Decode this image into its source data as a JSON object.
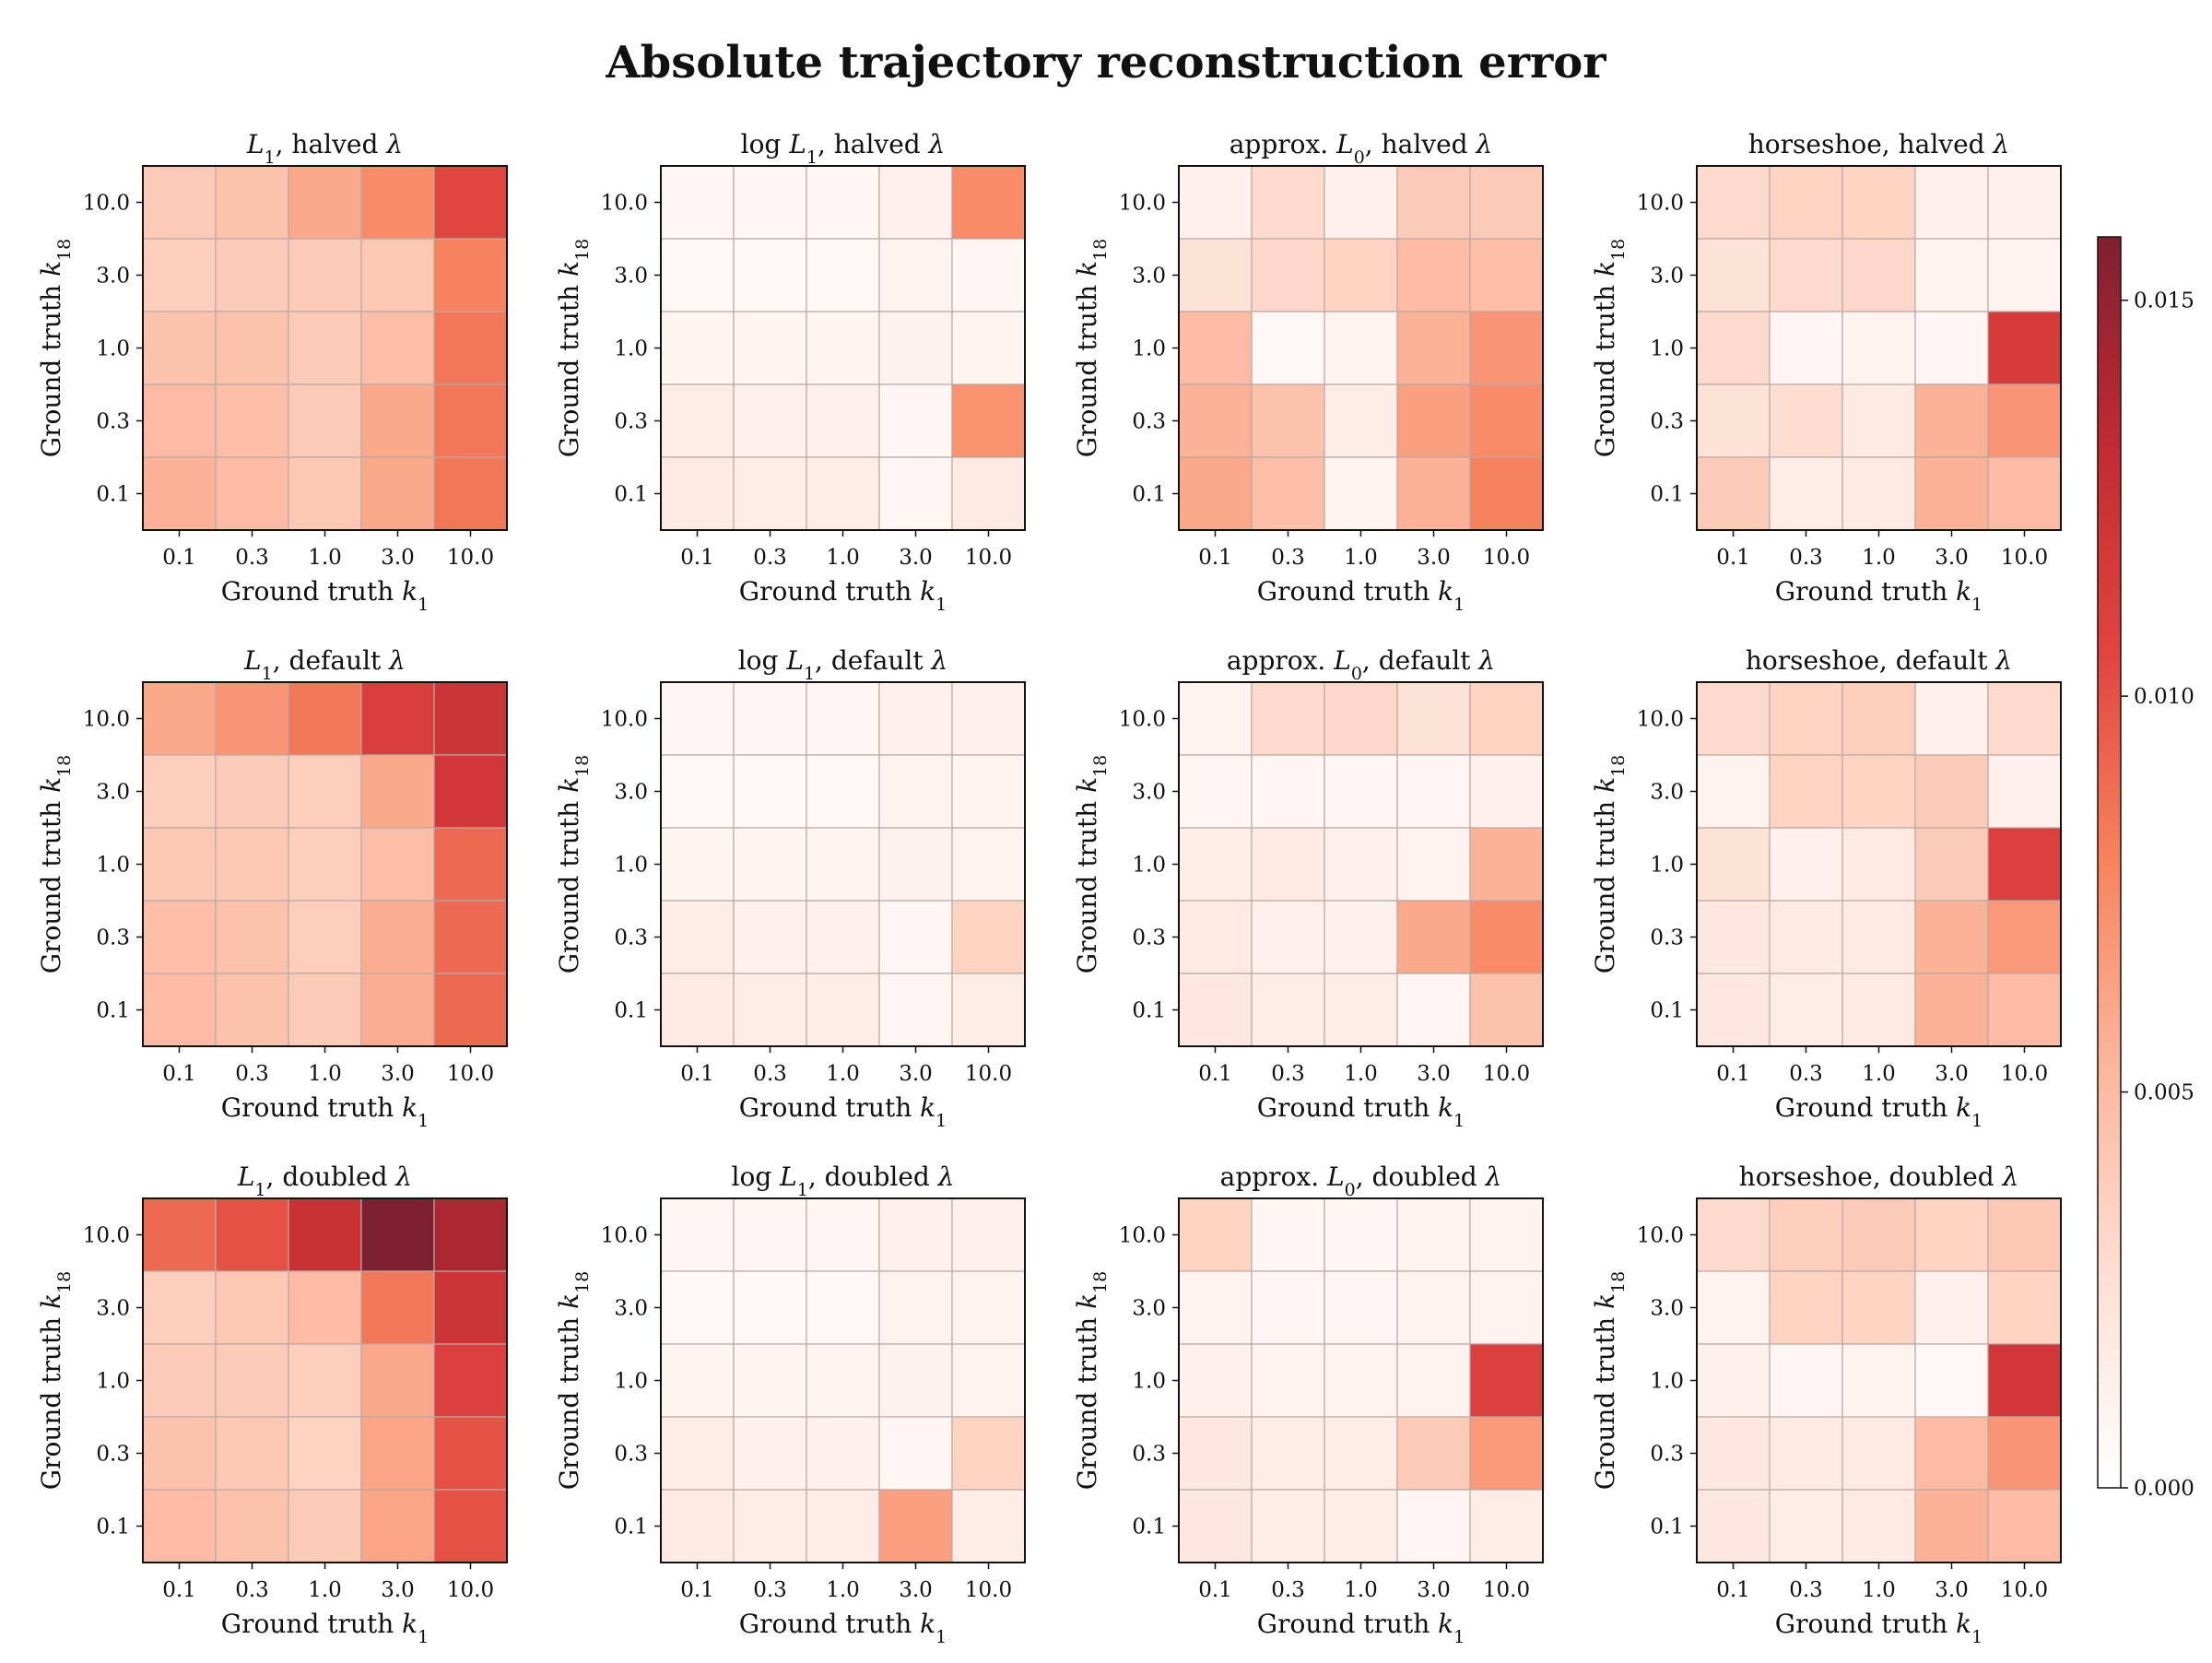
{
  "figure": {
    "title": "Absolute trajectory reconstruction error"
  },
  "chart_data": {
    "type": "heatmap",
    "title": "Absolute trajectory reconstruction error",
    "colorbar": {
      "vmin": 0.0,
      "vmax": 0.0158,
      "ticks": [
        "0.000",
        "0.005",
        "0.010",
        "0.015"
      ],
      "tick_values": [
        0,
        0.005,
        0.01,
        0.015
      ],
      "colormap": "Reds"
    },
    "x_categories": [
      "0.1",
      "0.3",
      "1.0",
      "3.0",
      "10.0"
    ],
    "y_categories_top_to_bottom": [
      "10.0",
      "3.0",
      "1.0",
      "0.3",
      "0.1"
    ],
    "panels": [
      {
        "title": "L1, halved λ",
        "method": "L",
        "method_sub": "1",
        "prefix": "",
        "suffix": ", halved",
        "xlabel": "Ground truth k",
        "xlabel_sub": "1",
        "ylabel": "Ground truth k",
        "ylabel_sub": "18",
        "values": [
          [
            0.004,
            0.0045,
            0.006,
            0.0075,
            0.0105
          ],
          [
            0.0038,
            0.004,
            0.004,
            0.0042,
            0.008
          ],
          [
            0.0045,
            0.0045,
            0.004,
            0.0048,
            0.0085
          ],
          [
            0.005,
            0.0048,
            0.004,
            0.006,
            0.0085
          ],
          [
            0.0055,
            0.005,
            0.0042,
            0.006,
            0.0085
          ]
        ]
      },
      {
        "title": "log L1, halved λ",
        "method": "L",
        "method_sub": "1",
        "prefix": "log ",
        "suffix": ", halved",
        "xlabel": "Ground truth k",
        "xlabel_sub": "1",
        "ylabel": "Ground truth k",
        "ylabel_sub": "18",
        "values": [
          [
            0.0008,
            0.0008,
            0.0008,
            0.0012,
            0.0075
          ],
          [
            0.0006,
            0.0006,
            0.0006,
            0.001,
            0.0007
          ],
          [
            0.0009,
            0.0009,
            0.0009,
            0.0011,
            0.0009
          ],
          [
            0.0015,
            0.0012,
            0.0012,
            0.0008,
            0.0072
          ],
          [
            0.0018,
            0.0015,
            0.0015,
            0.0008,
            0.0018
          ]
        ]
      },
      {
        "title": "approx. L0, halved λ",
        "method": "L",
        "method_sub": "0",
        "prefix": "approx. ",
        "suffix": ", halved",
        "xlabel": "Ground truth k",
        "xlabel_sub": "1",
        "ylabel": "Ground truth k",
        "ylabel_sub": "18",
        "values": [
          [
            0.0012,
            0.003,
            0.0012,
            0.004,
            0.004
          ],
          [
            0.0025,
            0.0032,
            0.0035,
            0.005,
            0.0048
          ],
          [
            0.005,
            0.0006,
            0.001,
            0.0055,
            0.007
          ],
          [
            0.0055,
            0.0045,
            0.0015,
            0.0065,
            0.0075
          ],
          [
            0.006,
            0.0048,
            0.001,
            0.0055,
            0.008
          ]
        ]
      },
      {
        "title": "horseshoe, halved λ",
        "method": "",
        "method_sub": "",
        "prefix": "horseshoe",
        "suffix": ", halved",
        "xlabel": "Ground truth k",
        "xlabel_sub": "1",
        "ylabel": "Ground truth k",
        "ylabel_sub": "18",
        "values": [
          [
            0.003,
            0.0035,
            0.0035,
            0.0012,
            0.0012
          ],
          [
            0.0025,
            0.003,
            0.0032,
            0.001,
            0.001
          ],
          [
            0.003,
            0.0008,
            0.001,
            0.0008,
            0.0115
          ],
          [
            0.0025,
            0.0028,
            0.0018,
            0.0055,
            0.007
          ],
          [
            0.004,
            0.0015,
            0.0018,
            0.0055,
            0.005
          ]
        ]
      },
      {
        "title": "L1, default λ",
        "method": "L",
        "method_sub": "1",
        "prefix": "",
        "suffix": ", default",
        "xlabel": "Ground truth k",
        "xlabel_sub": "1",
        "ylabel": "Ground truth k",
        "ylabel_sub": "18",
        "values": [
          [
            0.006,
            0.007,
            0.0085,
            0.0112,
            0.0122
          ],
          [
            0.0038,
            0.004,
            0.0038,
            0.006,
            0.012
          ],
          [
            0.0042,
            0.0042,
            0.0038,
            0.0048,
            0.009
          ],
          [
            0.0048,
            0.0045,
            0.0038,
            0.0058,
            0.009
          ],
          [
            0.005,
            0.0045,
            0.004,
            0.0058,
            0.009
          ]
        ]
      },
      {
        "title": "log L1, default λ",
        "method": "L",
        "method_sub": "1",
        "prefix": "log ",
        "suffix": ", default",
        "xlabel": "Ground truth k",
        "xlabel_sub": "1",
        "ylabel": "Ground truth k",
        "ylabel_sub": "18",
        "values": [
          [
            0.0008,
            0.0008,
            0.0008,
            0.0012,
            0.0012
          ],
          [
            0.0006,
            0.0006,
            0.0006,
            0.001,
            0.0009
          ],
          [
            0.0009,
            0.0009,
            0.0009,
            0.0011,
            0.001
          ],
          [
            0.0015,
            0.0012,
            0.0012,
            0.0008,
            0.0035
          ],
          [
            0.0018,
            0.0015,
            0.0015,
            0.0008,
            0.0015
          ]
        ]
      },
      {
        "title": "approx. L0, default λ",
        "method": "L",
        "method_sub": "0",
        "prefix": "approx. ",
        "suffix": ", default",
        "xlabel": "Ground truth k",
        "xlabel_sub": "1",
        "ylabel": "Ground truth k",
        "ylabel_sub": "18",
        "values": [
          [
            0.001,
            0.003,
            0.0032,
            0.0025,
            0.0035
          ],
          [
            0.0008,
            0.0008,
            0.0008,
            0.0008,
            0.0012
          ],
          [
            0.0015,
            0.0018,
            0.0012,
            0.001,
            0.0055
          ],
          [
            0.0018,
            0.0012,
            0.0012,
            0.006,
            0.0075
          ],
          [
            0.002,
            0.0015,
            0.0015,
            0.0008,
            0.0045
          ]
        ]
      },
      {
        "title": "horseshoe, default λ",
        "method": "",
        "method_sub": "",
        "prefix": "horseshoe",
        "suffix": ", default",
        "xlabel": "Ground truth k",
        "xlabel_sub": "1",
        "ylabel": "Ground truth k",
        "ylabel_sub": "18",
        "values": [
          [
            0.003,
            0.0035,
            0.0038,
            0.0012,
            0.003
          ],
          [
            0.001,
            0.0035,
            0.0035,
            0.004,
            0.0012
          ],
          [
            0.0025,
            0.0012,
            0.0018,
            0.004,
            0.011
          ],
          [
            0.002,
            0.0018,
            0.0018,
            0.0055,
            0.0068
          ],
          [
            0.002,
            0.0015,
            0.0018,
            0.0055,
            0.005
          ]
        ]
      },
      {
        "title": "L1, doubled λ",
        "method": "L",
        "method_sub": "1",
        "prefix": "",
        "suffix": ", doubled",
        "xlabel": "Ground truth k",
        "xlabel_sub": "1",
        "ylabel": "Ground truth k",
        "ylabel_sub": "18",
        "values": [
          [
            0.009,
            0.01,
            0.0125,
            0.0158,
            0.014
          ],
          [
            0.0038,
            0.0042,
            0.005,
            0.0085,
            0.0122
          ],
          [
            0.004,
            0.004,
            0.0038,
            0.006,
            0.011
          ],
          [
            0.0045,
            0.0042,
            0.0035,
            0.0062,
            0.01
          ],
          [
            0.005,
            0.0045,
            0.004,
            0.0062,
            0.01
          ]
        ]
      },
      {
        "title": "log L1, doubled λ",
        "method": "L",
        "method_sub": "1",
        "prefix": "log ",
        "suffix": ", doubled",
        "xlabel": "Ground truth k",
        "xlabel_sub": "1",
        "ylabel": "Ground truth k",
        "ylabel_sub": "18",
        "values": [
          [
            0.0008,
            0.0008,
            0.0008,
            0.0012,
            0.0012
          ],
          [
            0.0006,
            0.0006,
            0.0006,
            0.001,
            0.001
          ],
          [
            0.0009,
            0.0009,
            0.0009,
            0.0011,
            0.001
          ],
          [
            0.0015,
            0.0012,
            0.0012,
            0.0008,
            0.0035
          ],
          [
            0.0018,
            0.0015,
            0.0015,
            0.0065,
            0.0015
          ]
        ]
      },
      {
        "title": "approx. L0, doubled λ",
        "method": "L",
        "method_sub": "0",
        "prefix": "approx. ",
        "suffix": ", doubled",
        "xlabel": "Ground truth k",
        "xlabel_sub": "1",
        "ylabel": "Ground truth k",
        "ylabel_sub": "18",
        "values": [
          [
            0.0035,
            0.0008,
            0.0008,
            0.001,
            0.001
          ],
          [
            0.001,
            0.0008,
            0.0008,
            0.001,
            0.001
          ],
          [
            0.0012,
            0.001,
            0.001,
            0.001,
            0.011
          ],
          [
            0.002,
            0.0015,
            0.0015,
            0.004,
            0.0068
          ],
          [
            0.002,
            0.0015,
            0.0015,
            0.0008,
            0.0015
          ]
        ]
      },
      {
        "title": "horseshoe, doubled λ",
        "method": "",
        "method_sub": "",
        "prefix": "horseshoe",
        "suffix": ", doubled",
        "xlabel": "Ground truth k",
        "xlabel_sub": "1",
        "ylabel": "Ground truth k",
        "ylabel_sub": "18",
        "values": [
          [
            0.003,
            0.0038,
            0.004,
            0.0035,
            0.0042
          ],
          [
            0.001,
            0.0035,
            0.0035,
            0.0012,
            0.0035
          ],
          [
            0.0012,
            0.0008,
            0.001,
            0.0006,
            0.012
          ],
          [
            0.002,
            0.0018,
            0.0018,
            0.005,
            0.007
          ],
          [
            0.002,
            0.0015,
            0.0018,
            0.0055,
            0.005
          ]
        ]
      }
    ]
  },
  "colors": {
    "cmap_low": "#ffffff",
    "cmap_stops": [
      "#ffffff",
      "#fde0d4",
      "#fcb79c",
      "#f7845f",
      "#e0453f",
      "#c12b32",
      "#7f2030"
    ]
  }
}
